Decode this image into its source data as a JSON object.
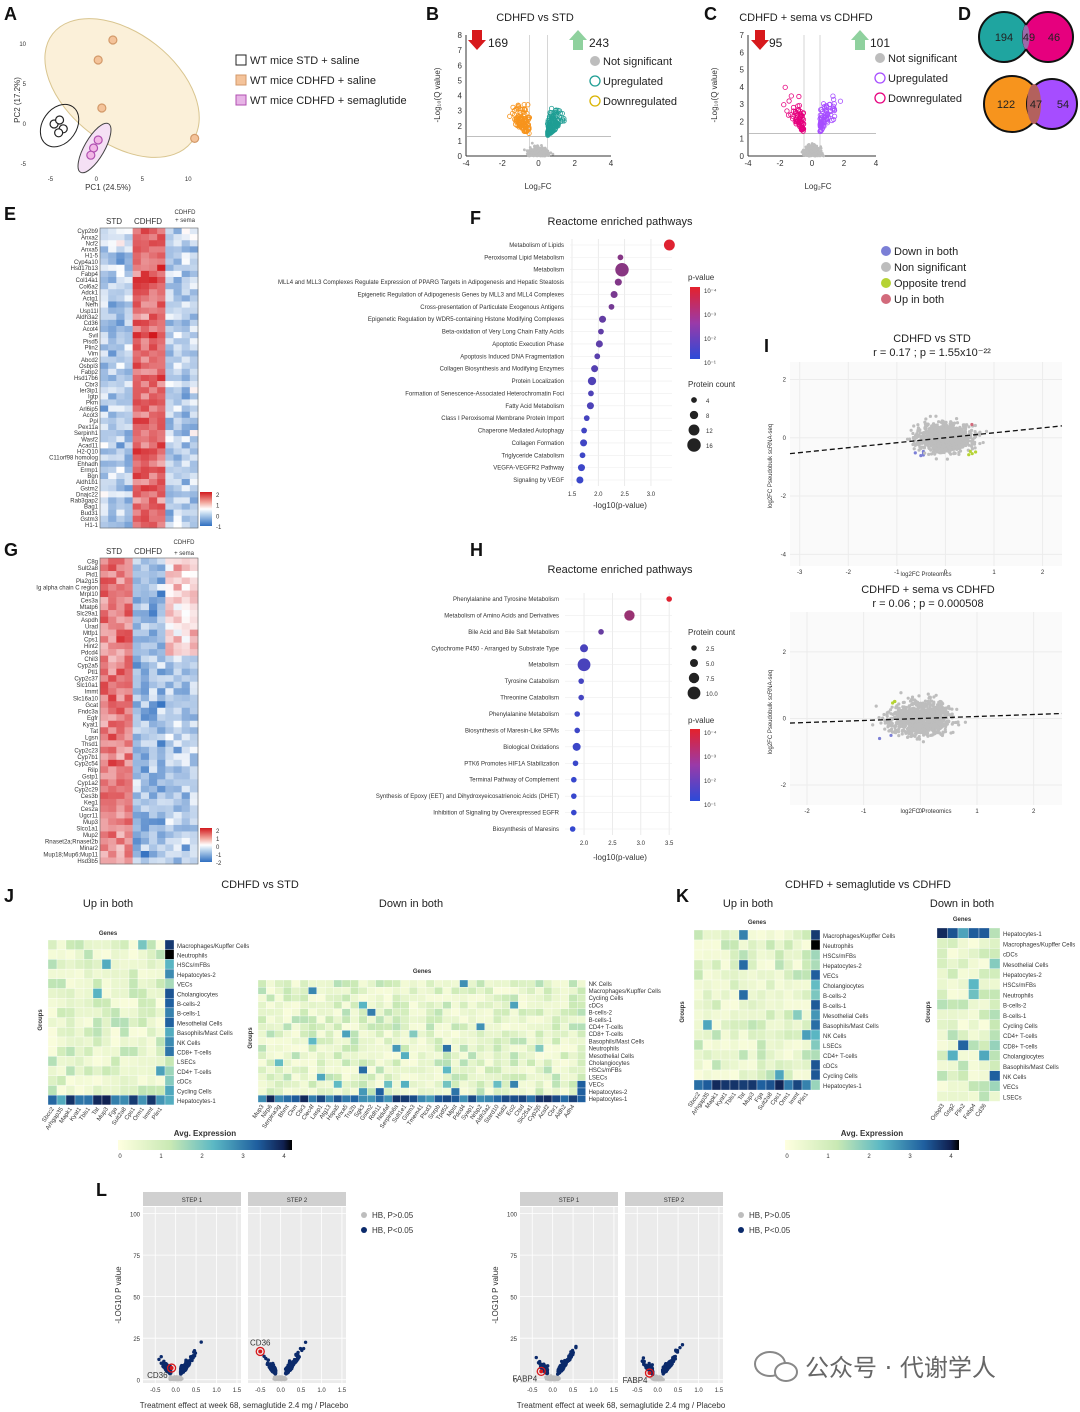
{
  "panels": {
    "A": "A",
    "B": "B",
    "C": "C",
    "D": "D",
    "E": "E",
    "F": "F",
    "G": "G",
    "H": "H",
    "I": "I",
    "J": "J",
    "K": "K",
    "L": "L"
  },
  "colors": {
    "teal": "#1f9e94",
    "orange": "#f7941d",
    "magenta": "#e6007e",
    "purple": "#a64dff",
    "gray": "#bdbdbd",
    "navy": "#0b2a6b",
    "red": "#d7191c",
    "green": "#8fd19e",
    "blue_dot": "#7b7fd6",
    "lime": "#b5d334",
    "pink": "#d26a7b"
  },
  "chart_data": [
    {
      "id": "A",
      "type": "scatter",
      "xlabel": "PC1 (24.5%)",
      "ylabel": "PC2 (17.2%)",
      "xlim": [
        -7,
        14
      ],
      "ylim": [
        -6,
        12
      ],
      "xticks": [
        "-5",
        "0",
        "5",
        "10"
      ],
      "yticks": [
        "-5",
        "0",
        "5",
        "10"
      ],
      "series": [
        {
          "name": "WT mice STD + saline",
          "color": "#ffffff",
          "points": [
            [
              -4.6,
              0
            ],
            [
              -4.0,
              0.5
            ],
            [
              -3.6,
              -0.6
            ],
            [
              -4.1,
              -1.1
            ]
          ]
        },
        {
          "name": "WT mice CDHFD + saline",
          "color": "#f4c39a",
          "points": [
            [
              1.8,
              10.5
            ],
            [
              0.6,
              2.0
            ],
            [
              10.7,
              -1.8
            ],
            [
              0.2,
              8.0
            ]
          ]
        },
        {
          "name": "WT mice CDHFD + semaglutide",
          "color": "#e7b4e6",
          "points": [
            [
              0.2,
              -2.0
            ],
            [
              -0.3,
              -3.0
            ],
            [
              -0.6,
              -3.9
            ]
          ]
        }
      ]
    },
    {
      "id": "B",
      "type": "scatter",
      "title": "CDHFD vs STD",
      "xlabel": "Log₂FC",
      "ylabel": "-Log₁₀(Q value)",
      "xlim": [
        -4,
        4
      ],
      "ylim": [
        0,
        8
      ],
      "xticks": [
        "-4",
        "-2",
        "0",
        "2",
        "4"
      ],
      "yticks": [
        "0",
        "1",
        "2",
        "3",
        "4",
        "5",
        "6",
        "7",
        "8"
      ],
      "down_count": "169",
      "up_count": "243",
      "legend": [
        "Not significant",
        "Upregulated",
        "Downregulated"
      ]
    },
    {
      "id": "C",
      "type": "scatter",
      "title": "CDHFD + sema vs CDHFD",
      "xlabel": "Log₂FC",
      "ylabel": "-Log₁₀(Q value)",
      "xlim": [
        -4,
        4
      ],
      "ylim": [
        0,
        7
      ],
      "xticks": [
        "-4",
        "-2",
        "0",
        "2",
        "4"
      ],
      "yticks": [
        "0",
        "1",
        "2",
        "3",
        "4",
        "5",
        "6",
        "7"
      ],
      "down_count": "95",
      "up_count": "101",
      "legend": [
        "Not significant",
        "Upregulated",
        "Downregulated"
      ]
    },
    {
      "id": "D",
      "type": "venn",
      "sets": [
        {
          "left": "194",
          "overlap": "49",
          "right": "46"
        },
        {
          "left": "122",
          "overlap": "47",
          "right": "54"
        }
      ]
    },
    {
      "id": "E",
      "type": "heatmap",
      "columns": [
        "STD",
        "CDHFD",
        "CDHFD",
        "+ sema"
      ],
      "genes": [
        "Cyp2b9",
        "Anxa2",
        "Ncf2",
        "Anxa5",
        "H1-5",
        "Cyp4a10",
        "Hsd17b13",
        "Fabp4",
        "Col14a1",
        "Col6a2",
        "Adck1",
        "Actg1",
        "Nefh",
        "Usp11l",
        "Aldh3a2",
        "Cd36",
        "Acot4",
        "Svil",
        "Pisd5",
        "Plin2",
        "Vim",
        "Abcd2",
        "Osbpl3",
        "Fabp2",
        "Hsd17b6",
        "Cbr3",
        "Ier3ip1",
        "Igtp",
        "Pkm",
        "Arl6ip5",
        "Acot3",
        "Ppl",
        "Pex11a",
        "Serpinh1",
        "Wasf2",
        "Acad11",
        "H2-Q10",
        "C11orf98 homolog",
        "Ehhadh",
        "Ermp1",
        "Bgn",
        "Aldh1b1",
        "Gstm2",
        "Dnajc22",
        "Rab3gap2",
        "Bag1",
        "Bud31",
        "Gstm3",
        "H1-1"
      ],
      "scale": [
        "2",
        "1",
        "0",
        "-1"
      ]
    },
    {
      "id": "F",
      "type": "scatter",
      "title": "Reactome enriched pathways",
      "xlabel": "-log10(p-value)",
      "xticks": [
        "1.5",
        "2.0",
        "2.5",
        "3.0"
      ],
      "pathways": [
        "Metabolism of Lipids",
        "Peroxisomal Lipid Metabolism",
        "Metabolism",
        "MLL4 and MLL3 Complexes Regulate Expression of PPARG Targets in Adipogenesis and Hepatic Steatosis",
        "Epigenetic Regulation of Adipogenesis Genes by MLL3 and MLL4 Complexes",
        "Cross-presentation of Particulate Exogenous Antigens",
        "Epigenetic Regulation by WDR5-containing Histone Modifying Complexes",
        "Beta-oxidation of Very Long Chain Fatty Acids",
        "Apoptotic Execution Phase",
        "Apoptosis Induced DNA Fragmentation",
        "Collagen Biosynthesis and Modifying Enzymes",
        "Protein Localization",
        "Formation of Senescence-Associated Heterochromatin Foci",
        "Fatty Acid Metabolism",
        "Class I Peroxisomal Membrane Protein Import",
        "Chaperone Mediated Autophagy",
        "Collagen Formation",
        "Triglyceride Catabolism",
        "VEGFA-VEGFR2 Pathway",
        "Signaling by VEGF"
      ],
      "values": [
        3.35,
        2.42,
        2.45,
        2.38,
        2.3,
        2.25,
        2.08,
        2.05,
        2.02,
        1.98,
        1.93,
        1.88,
        1.86,
        1.85,
        1.78,
        1.73,
        1.72,
        1.7,
        1.68,
        1.65
      ],
      "counts": [
        12,
        4,
        16,
        6,
        6,
        4,
        6,
        4,
        6,
        4,
        6,
        8,
        4,
        6,
        4,
        4,
        6,
        4,
        6,
        6
      ],
      "pvalue_label": "p-value",
      "pvalue_ticks": [
        "10⁻⁴",
        "10⁻³",
        "10⁻²",
        "10⁻¹"
      ],
      "count_label": "Protein count",
      "count_ticks": [
        "4",
        "8",
        "12",
        "16"
      ]
    },
    {
      "id": "G",
      "type": "heatmap",
      "columns": [
        "STD",
        "CDHFD",
        "CDHFD",
        "+ sema"
      ],
      "genes": [
        "C8g",
        "Sult2a8",
        "Pid1",
        "Pla2g15",
        "Ig alpha chain C region",
        "Mrpl10",
        "Ces3a",
        "Mtatp6",
        "Slc29a1",
        "Aspdh",
        "Urad",
        "Mtfp1",
        "Cps1",
        "Hint2",
        "Pdcd4",
        "Chil3",
        "Cyp2a5",
        "Ptl1",
        "Cyp2c37",
        "Slc10a1",
        "Immt",
        "Slc16a10",
        "Gcat",
        "Fndc3a",
        "Egfr",
        "Kyat1",
        "Tat",
        "Lgsn",
        "Thsd1",
        "Cyp2c23",
        "Cyp7b1",
        "Cyp2c54",
        "Rilp",
        "Gstp1",
        "Cyp1a2",
        "Cyp2c29",
        "Ces3b",
        "Keg1",
        "Ces2a",
        "Ugcr11",
        "Mup3",
        "Slco1a1",
        "Mup2",
        "Rnaset2a;Rnaset2b",
        "Minar2",
        "Mup18;Mup6;Mup11",
        "Hsd3b5"
      ],
      "scale": [
        "2",
        "1",
        "0",
        "-1",
        "-2"
      ]
    },
    {
      "id": "H",
      "type": "scatter",
      "title": "Reactome enriched pathways",
      "xlabel": "-log10(p-value)",
      "xticks": [
        "2.0",
        "2.5",
        "3.0",
        "3.5"
      ],
      "pathways": [
        "Phenylalanine and Tyrosine Metabolism",
        "Metabolism of Amino Acids and Derivatives",
        "Bile Acid and Bile Salt Metabolism",
        "Cytochrome P450 - Arranged by Substrate Type",
        "Metabolism",
        "Tyrosine Catabolism",
        "Threonine Catabolism",
        "Phenylalanine Metabolism",
        "Biosynthesis of Maresin-Like SPMs",
        "Biological Oxidations",
        "PTK6 Promotes HIF1A Stabilization",
        "Terminal Pathway of Complement",
        "Synthesis of Epoxy (EET) and Dihydroxyeicosatrienoic Acids (DHET)",
        "Inhibition of Signaling by Overexpressed EGFR",
        "Biosynthesis of Maresins"
      ],
      "values": [
        3.5,
        2.8,
        2.3,
        2.0,
        2.0,
        1.95,
        1.95,
        1.88,
        1.88,
        1.87,
        1.85,
        1.82,
        1.82,
        1.82,
        1.8
      ],
      "counts": [
        2.5,
        7.5,
        2.5,
        5.0,
        10.0,
        2.5,
        2.5,
        2.5,
        2.5,
        5.0,
        2.5,
        2.5,
        2.5,
        2.5,
        2.5
      ],
      "pvalue_label": "p-value",
      "pvalue_ticks": [
        "10⁻⁴",
        "10⁻³",
        "10⁻²",
        "10⁻¹"
      ],
      "count_label": "Protein count",
      "count_ticks": [
        "2.5",
        "5.0",
        "7.5",
        "10.0"
      ]
    },
    {
      "id": "I",
      "type": "scatter",
      "legend": [
        "Down in both",
        "Non significant",
        "Opposite trend",
        "Up in both"
      ],
      "plots": [
        {
          "title": "CDHFD vs STD",
          "stat": "r = 0.17 ; p = 1.55x10⁻²²",
          "xlabel": "log2FC Proteomics",
          "ylabel": "log2FC Pseudobulk scRNA-seq",
          "xticks": [
            "-3",
            "-2",
            "-1",
            "0",
            "1",
            "2"
          ],
          "yticks": [
            "-4",
            "-2",
            "0",
            "2"
          ],
          "slope": 0.17
        },
        {
          "title": "CDHFD + sema vs CDHFD",
          "stat": "r = 0.06 ; p = 0.000508",
          "xlabel": "log2FC Proteomics",
          "ylabel": "log2FC Pseudobulk scRNA-seq",
          "xticks": [
            "-2",
            "-1",
            "0",
            "1",
            "2"
          ],
          "yticks": [
            "-2",
            "0",
            "2"
          ],
          "slope": 0.06
        }
      ]
    },
    {
      "id": "J",
      "type": "heatmap",
      "title": "CDHFD vs STD",
      "sub": [
        {
          "title": "Up in both",
          "genes_title": "Genes",
          "groups_title": "Groups",
          "groups": [
            "Macrophages/Kupffer Cells",
            "Neutrophils",
            "HSCs/mFBs",
            "Hepatocytes-2",
            "VECs",
            "Cholangiocytes",
            "B-cells-2",
            "B-cells-1",
            "Mesothelial Cells",
            "Basophils/Mast Cells",
            "NK Cells",
            "CD8+ T-cells",
            "LSECs",
            "CD4+ T-cells",
            "cDCs",
            "Cycling Cells",
            "Hepatocytes-1"
          ],
          "genes": [
            "Sbcc2",
            "Arhgap35",
            "Mapk1",
            "Kyat1",
            "Tbls1",
            "Tat",
            "Mup3",
            "Fga",
            "Sult2a8",
            "Cps1",
            "Orm1",
            "Immt",
            "Plin1"
          ]
        },
        {
          "title": "Down in both",
          "genes_title": "Genes",
          "groups_title": "Groups",
          "groups": [
            "NK Cells",
            "Macrophages/Kupffer Cells",
            "Cycling Cells",
            "cDCs",
            "B-cells-2",
            "B-cells-1",
            "CD4+ T-cells",
            "CD8+ T-cells",
            "Basophils/Mast Cells",
            "Neutrophils",
            "Mesothelial Cells",
            "Cholangiocytes",
            "HSCs/mFBs",
            "LSECs",
            "VECs",
            "Hepatocytes-2",
            "Hepatocytes-1"
          ],
          "genes": [
            "Mup3",
            "Nlrp6",
            "Serpina3g",
            "Bhmt",
            "Ckm",
            "Cbr3",
            "Clec4f",
            "Lasp1",
            "Atg13",
            "Hspa5",
            "Anxa5",
            "Tra2b",
            "Sgk3",
            "Gstm2",
            "Rdh11",
            "Ndufaf",
            "Serpinb6a",
            "Sult1e1",
            "Gstm3",
            "Tmem41",
            "Ptcd3",
            "Snrpb",
            "Tpd52",
            "Mpst",
            "Pdcd4",
            "Syap1",
            "Nrbp2",
            "Aldh3a2",
            "Stard10",
            "Hsdl2",
            "Eci2",
            "Ctsd",
            "Slc25a1",
            "Cyp2j5",
            "Acsf2",
            "Cbr1",
            "Aldh2",
            "Adh4"
          ]
        }
      ],
      "scale_title": "Avg. Expression",
      "scale": [
        "0",
        "1",
        "2",
        "3",
        "4"
      ]
    },
    {
      "id": "K",
      "type": "heatmap",
      "title": "CDHFD + semaglutide vs CDHFD",
      "sub": [
        {
          "title": "Up in both",
          "genes_title": "Genes",
          "groups_title": "Groups",
          "groups": [
            "Macrophages/Kupffer Cells",
            "Neutrophils",
            "HSCs/mFBs",
            "Hepatocytes-2",
            "VECs",
            "Cholangiocytes",
            "B-cells-2",
            "B-cells-1",
            "Mesothelial Cells",
            "Basophils/Mast Cells",
            "NK Cells",
            "LSECs",
            "CD4+ T-cells",
            "cDCs",
            "Cycling Cells",
            "Hepatocytes-1"
          ],
          "genes": [
            "Sbcc2",
            "Arhgap35",
            "Mapk1",
            "Kyat1",
            "Tbls1",
            "Tat",
            "Mup3",
            "Fga",
            "Sult2a8",
            "Cps1",
            "Orm1",
            "Immt",
            "Plin1"
          ]
        },
        {
          "title": "Down in both",
          "genes_title": "Genes",
          "groups_title": "Groups",
          "groups": [
            "Hepatocytes-1",
            "Macrophages/Kupffer Cells",
            "cDCs",
            "Mesothelial Cells",
            "Hepatocytes-2",
            "HSCs/mFBs",
            "Neutrophils",
            "B-cells-2",
            "B-cells-1",
            "Cycling Cells",
            "CD4+ T-cells",
            "CD8+ T-cells",
            "Cholangiocytes",
            "Basophils/Mast Cells",
            "NK Cells",
            "VECs",
            "LSECs"
          ],
          "genes": [
            "Osbpl3",
            "Gsg2",
            "Plin2",
            "Fabp4",
            "Cd36"
          ]
        }
      ],
      "scale_title": "Avg. Expression",
      "scale": [
        "0",
        "1",
        "2",
        "3",
        "4"
      ]
    },
    {
      "id": "L",
      "type": "scatter",
      "legend": [
        "HB, P>0.05",
        "HB, P<0.05"
      ],
      "steps": [
        "STEP 1",
        "STEP 2"
      ],
      "xlabel": "Treatment effect at week 68, semaglutide 2.4 mg / Placebo",
      "ylabel": "-LOG10 P value",
      "xticks": [
        "-0.5",
        "0.0",
        "0.5",
        "1.0",
        "1.5"
      ],
      "yticks": [
        "0",
        "25",
        "50",
        "75",
        "100"
      ],
      "highlights": [
        {
          "label": "CD36",
          "step1": [
            -0.1,
            7
          ],
          "step2": [
            -0.5,
            17
          ]
        },
        {
          "label": "FABP4",
          "step1": [
            -0.28,
            5
          ],
          "step2": [
            -0.2,
            4
          ]
        }
      ]
    }
  ],
  "watermark": "公众号 · 代谢学人"
}
